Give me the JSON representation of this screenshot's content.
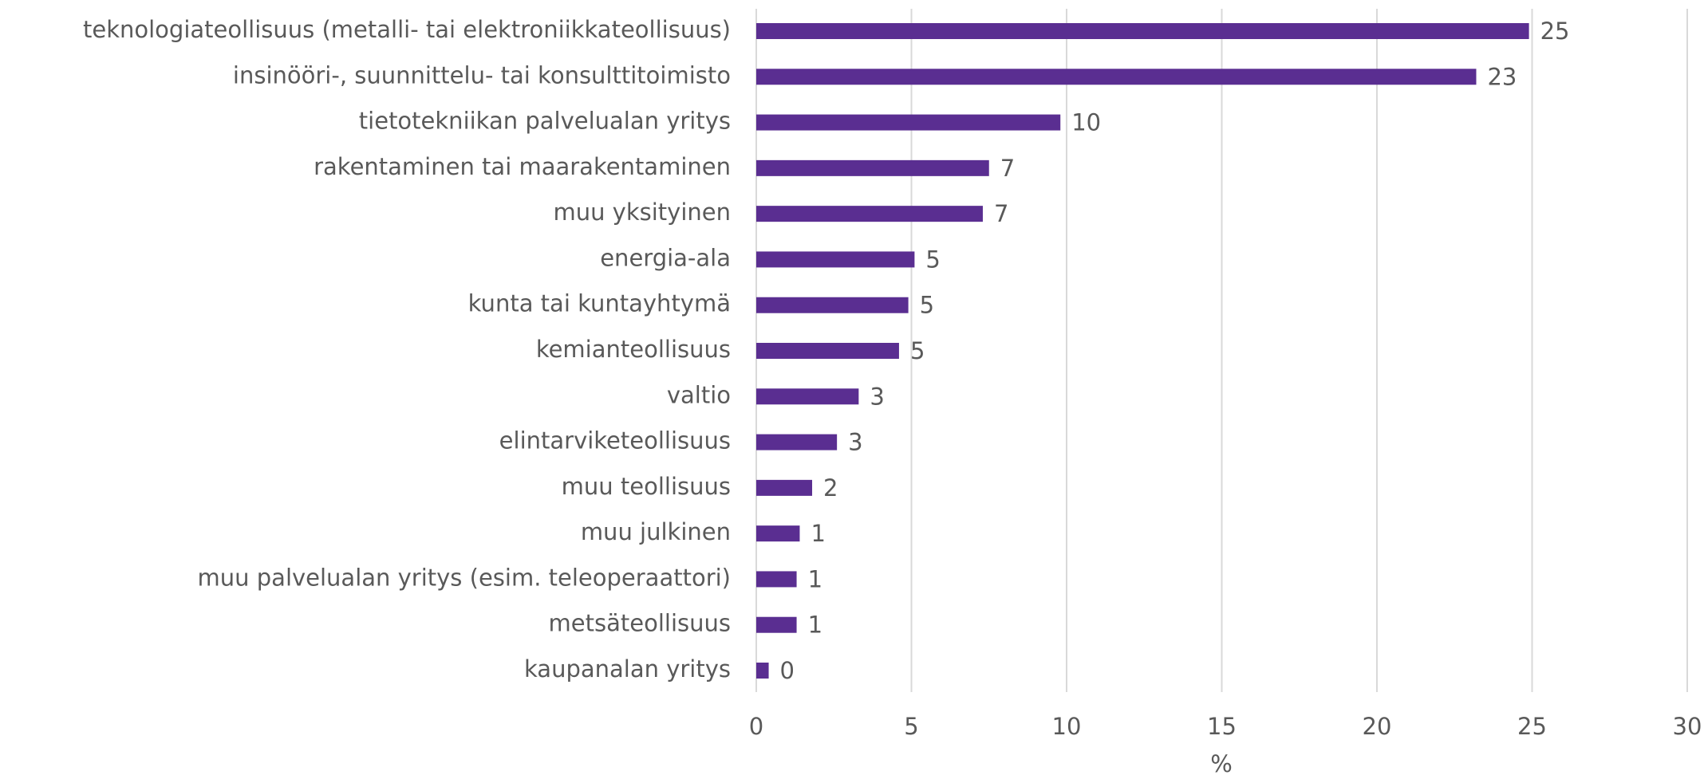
{
  "chart_data": {
    "type": "hbar",
    "categories": [
      "teknologiateollisuus (metalli- tai elektroniikkateollisuus)",
      "insinööri-, suunnittelu- tai konsulttitoimisto",
      "tietotekniikan palvelualan yritys",
      "rakentaminen tai maarakentaminen",
      "muu yksityinen",
      "energia-ala",
      "kunta tai kuntayhtymä",
      "kemianteollisuus",
      "valtio",
      "elintarviketeollisuus",
      "muu teollisuus",
      "muu julkinen",
      "muu palvelualan yritys (esim. teleoperaattori)",
      "metsäteollisuus",
      "kaupanalan yritys"
    ],
    "values": [
      24.9,
      23.2,
      9.8,
      7.5,
      7.3,
      5.1,
      4.9,
      4.6,
      3.3,
      2.6,
      1.8,
      1.4,
      1.3,
      1.3,
      0.4
    ],
    "value_labels": [
      "25",
      "23",
      "10",
      "7",
      "7",
      "5",
      "5",
      "5",
      "3",
      "3",
      "2",
      "1",
      "1",
      "1",
      "0"
    ],
    "color": "#5a2e91",
    "xlabel": "%",
    "xlim": [
      0,
      30
    ],
    "xticks": [
      0,
      5,
      10,
      15,
      20,
      25,
      30
    ],
    "grid": true
  }
}
